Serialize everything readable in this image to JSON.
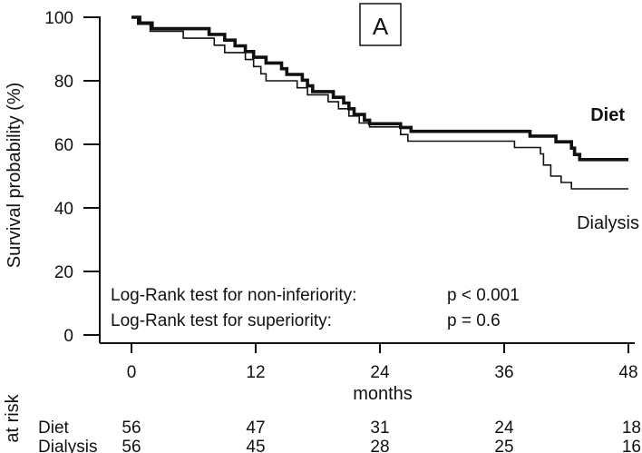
{
  "chart_data": {
    "type": "line",
    "panel_label": "A",
    "xlabel": "months",
    "ylabel": "Survival probability (%)",
    "xlim": [
      0,
      48
    ],
    "ylim": [
      0,
      100
    ],
    "xticks": [
      0,
      12,
      24,
      36,
      48
    ],
    "yticks": [
      0,
      20,
      40,
      60,
      80,
      100
    ],
    "series": [
      {
        "name": "Diet",
        "line_style": "thick",
        "color": "#111111",
        "points": [
          [
            0,
            100
          ],
          [
            0.8,
            100
          ],
          [
            0.8,
            98.2
          ],
          [
            2,
            98.2
          ],
          [
            2,
            96.4
          ],
          [
            7.5,
            96.4
          ],
          [
            7.5,
            94.6
          ],
          [
            9,
            94.6
          ],
          [
            9,
            92.8
          ],
          [
            10,
            92.8
          ],
          [
            10,
            91
          ],
          [
            11,
            91
          ],
          [
            11,
            89.2
          ],
          [
            11.8,
            89.2
          ],
          [
            11.8,
            87.4
          ],
          [
            13,
            87.4
          ],
          [
            13,
            85.6
          ],
          [
            14.5,
            85.6
          ],
          [
            14.5,
            83.8
          ],
          [
            15,
            83.8
          ],
          [
            15,
            82
          ],
          [
            16.5,
            82
          ],
          [
            16.5,
            80.2
          ],
          [
            17,
            80.2
          ],
          [
            17,
            78.4
          ],
          [
            17.5,
            78.4
          ],
          [
            17.5,
            76.6
          ],
          [
            19.5,
            76.6
          ],
          [
            19.5,
            74.8
          ],
          [
            20.5,
            74.8
          ],
          [
            20.5,
            73
          ],
          [
            21,
            73
          ],
          [
            21,
            71.2
          ],
          [
            21.5,
            71.2
          ],
          [
            21.5,
            69.4
          ],
          [
            22.5,
            69.4
          ],
          [
            22.5,
            67.6
          ],
          [
            23,
            67.6
          ],
          [
            23,
            66.5
          ],
          [
            26,
            66.5
          ],
          [
            26,
            65.3
          ],
          [
            27,
            65.3
          ],
          [
            27,
            64.1
          ],
          [
            38.5,
            64.1
          ],
          [
            38.5,
            62.6
          ],
          [
            41,
            62.6
          ],
          [
            41,
            60.8
          ],
          [
            42.5,
            60.8
          ],
          [
            42.5,
            58.8
          ],
          [
            42.8,
            58.8
          ],
          [
            42.8,
            56.8
          ],
          [
            43.3,
            56.8
          ],
          [
            43.3,
            55.2
          ],
          [
            48,
            55.2
          ]
        ]
      },
      {
        "name": "Dialysis",
        "line_style": "thin",
        "color": "#111111",
        "points": [
          [
            0,
            100
          ],
          [
            0.6,
            100
          ],
          [
            0.6,
            97.8
          ],
          [
            1.8,
            97.8
          ],
          [
            1.8,
            95.6
          ],
          [
            5,
            95.6
          ],
          [
            5,
            93.4
          ],
          [
            8,
            93.4
          ],
          [
            8,
            91.2
          ],
          [
            9,
            91.2
          ],
          [
            9,
            88.9
          ],
          [
            11,
            88.9
          ],
          [
            11,
            86.7
          ],
          [
            11.8,
            86.7
          ],
          [
            11.8,
            84.5
          ],
          [
            12.5,
            84.5
          ],
          [
            12.5,
            82.2
          ],
          [
            13,
            82.2
          ],
          [
            13,
            80
          ],
          [
            16,
            80
          ],
          [
            16,
            77.8
          ],
          [
            17,
            77.8
          ],
          [
            17,
            75.6
          ],
          [
            19,
            75.6
          ],
          [
            19,
            73.4
          ],
          [
            20,
            73.4
          ],
          [
            20,
            71.2
          ],
          [
            21,
            71.2
          ],
          [
            21,
            68.9
          ],
          [
            22,
            68.9
          ],
          [
            22,
            66.7
          ],
          [
            23,
            66.7
          ],
          [
            23,
            65.5
          ],
          [
            26,
            65.5
          ],
          [
            26,
            63.1
          ],
          [
            26.7,
            63.1
          ],
          [
            26.7,
            61
          ],
          [
            37,
            61
          ],
          [
            37,
            59
          ],
          [
            39.5,
            59
          ],
          [
            39.5,
            57
          ],
          [
            39.8,
            57
          ],
          [
            39.8,
            53.5
          ],
          [
            40.5,
            53.5
          ],
          [
            40.5,
            50
          ],
          [
            41.5,
            50
          ],
          [
            41.5,
            48
          ],
          [
            42.5,
            48
          ],
          [
            42.5,
            46
          ],
          [
            48,
            46
          ]
        ]
      }
    ],
    "annotations": [
      {
        "label": "Log-Rank test for non-inferiority:",
        "value": "p < 0.001"
      },
      {
        "label": "Log-Rank test for superiority:",
        "value": "p = 0.6"
      }
    ],
    "at_risk": {
      "title": "at risk",
      "rows": [
        {
          "group": "Diet",
          "counts": [
            56,
            47,
            31,
            24,
            18
          ]
        },
        {
          "group": "Dialysis",
          "counts": [
            56,
            45,
            28,
            25,
            16
          ]
        }
      ]
    }
  }
}
